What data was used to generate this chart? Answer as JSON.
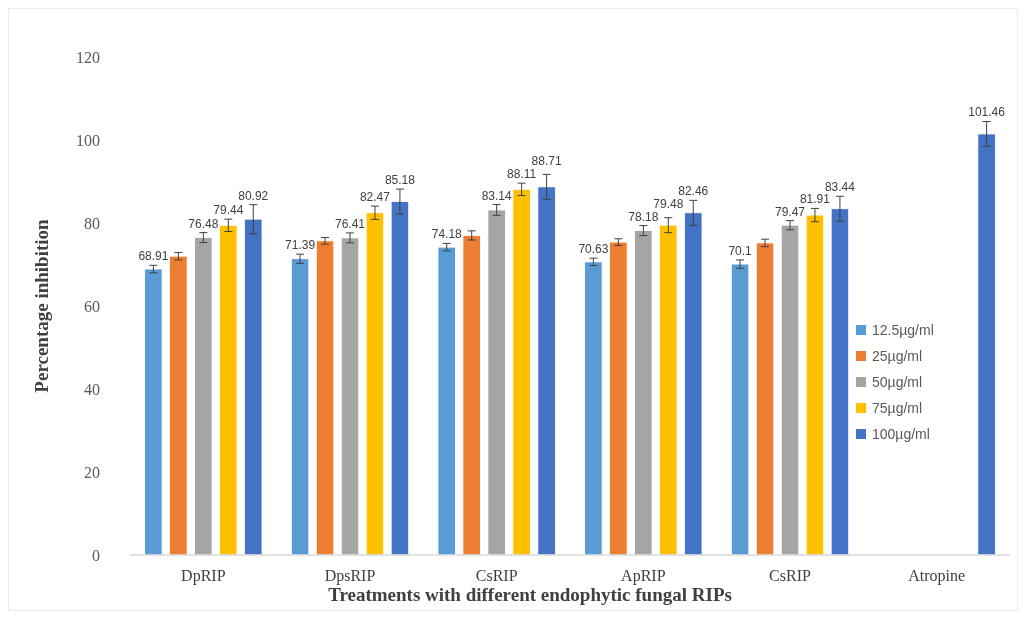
{
  "chart_data": {
    "type": "bar",
    "xlabel": "Treatments with different endophytic fungal RIPs",
    "ylabel": "Percentage inhibition",
    "categories": [
      "DpRIP",
      "DpsRIP",
      "CsRIP",
      "ApRIP",
      "CsRIP",
      "Atropine"
    ],
    "ylim": [
      0,
      120
    ],
    "yticks": [
      0,
      20,
      40,
      60,
      80,
      100,
      120
    ],
    "grid": false,
    "legend": "right",
    "series": [
      {
        "name": "12.5µg/ml",
        "color": "#5b9bd5",
        "values": [
          68.91,
          71.39,
          74.18,
          70.63,
          70.1,
          null
        ],
        "errors": [
          0.9,
          1.1,
          0.9,
          0.9,
          1.0,
          null
        ],
        "value_labels": [
          "68.91",
          "71.39",
          "74.18",
          "70.63",
          "70.1",
          null
        ]
      },
      {
        "name": "25µg/ml",
        "color": "#ed7d31",
        "values": [
          72.0,
          75.7,
          77.0,
          75.4,
          75.2,
          null
        ],
        "errors": [
          0.9,
          0.8,
          1.1,
          0.8,
          0.9,
          null
        ],
        "value_labels": [
          null,
          null,
          null,
          null,
          null,
          null
        ]
      },
      {
        "name": "50µg/ml",
        "color": "#a5a5a5",
        "values": [
          76.48,
          76.41,
          83.14,
          78.18,
          79.47,
          null
        ],
        "errors": [
          1.2,
          1.2,
          1.3,
          1.2,
          1.1,
          null
        ],
        "value_labels": [
          "76.48",
          "76.41",
          "83.14",
          "78.18",
          "79.47",
          null
        ]
      },
      {
        "name": "75µg/ml",
        "color": "#ffc000",
        "values": [
          79.44,
          82.47,
          88.11,
          79.48,
          81.91,
          null
        ],
        "errors": [
          1.5,
          1.6,
          1.5,
          1.8,
          1.6,
          null
        ],
        "value_labels": [
          "79.44",
          "82.47",
          "88.11",
          "79.48",
          "81.91",
          null
        ]
      },
      {
        "name": "100µg/ml",
        "color": "#4472c4",
        "values": [
          80.92,
          85.18,
          88.71,
          82.46,
          83.44,
          101.46
        ],
        "errors": [
          3.5,
          3.0,
          3.0,
          3.0,
          3.0,
          3.0
        ],
        "value_labels": [
          "80.92",
          "85.18",
          "88.71",
          "82.46",
          "83.44",
          "101.46"
        ]
      }
    ]
  }
}
